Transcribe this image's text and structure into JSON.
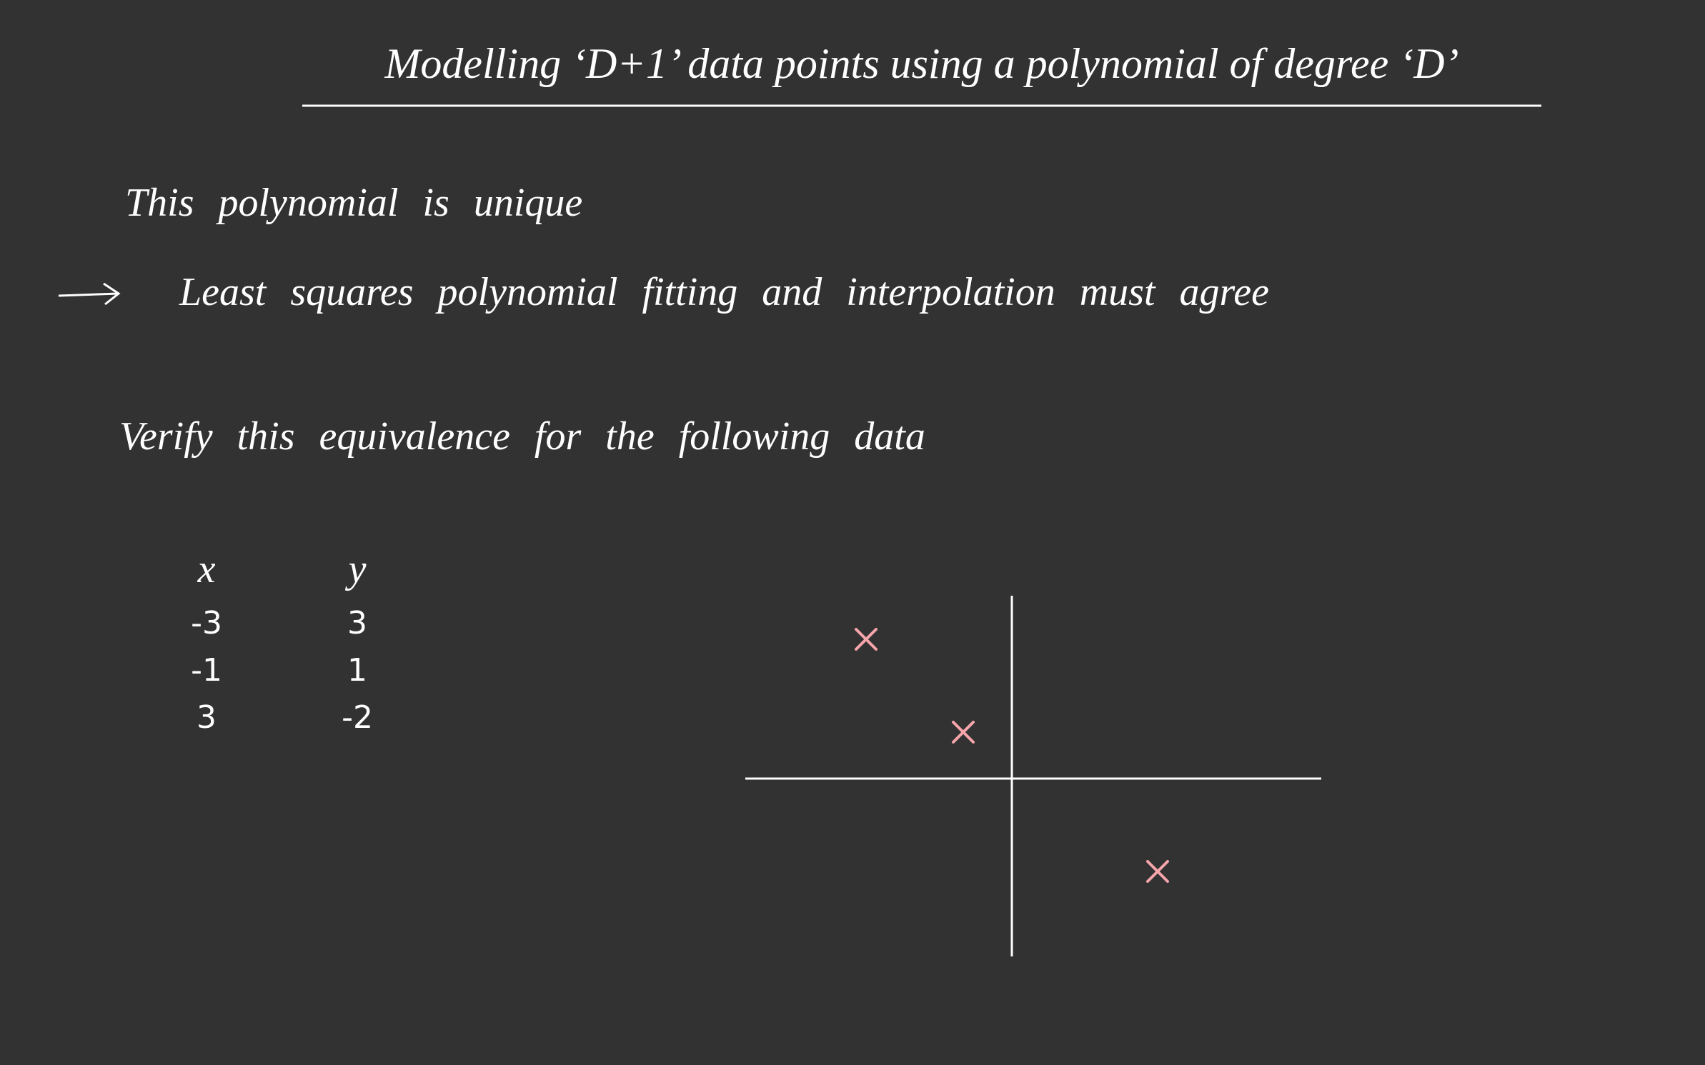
{
  "title": "Modelling ‘D+1’ data points using a polynomial of degree ‘D’",
  "statements": [
    "This polynomial is unique",
    "Least squares polynomial fitting and interpolation must agree"
  ],
  "task": "Verify this equivalence for the following data",
  "table": {
    "headers": [
      "x",
      "y"
    ],
    "rows": [
      [
        -3,
        3
      ],
      [
        -1,
        1
      ],
      [
        3,
        -2
      ]
    ]
  }
}
